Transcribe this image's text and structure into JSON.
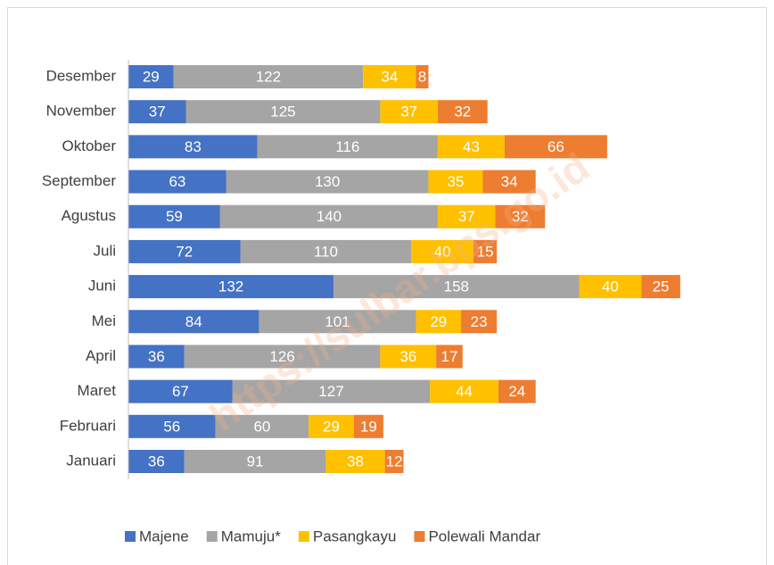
{
  "chart_data": {
    "type": "stacked-barh",
    "categories": [
      "Januari",
      "Februari",
      "Maret",
      "April",
      "Mei",
      "Juni",
      "Juli",
      "Agustus",
      "September",
      "Oktober",
      "November",
      "Desember"
    ],
    "series": [
      {
        "name": "Majene",
        "color": "#4472c4",
        "values": [
          36,
          56,
          67,
          36,
          84,
          132,
          72,
          59,
          63,
          83,
          37,
          29
        ]
      },
      {
        "name": "Mamuju*",
        "color": "#a5a5a5",
        "values": [
          91,
          60,
          127,
          126,
          101,
          158,
          110,
          140,
          130,
          116,
          125,
          122
        ]
      },
      {
        "name": "Pasangkayu",
        "color": "#ffc000",
        "values": [
          38,
          29,
          44,
          36,
          29,
          40,
          40,
          37,
          35,
          43,
          37,
          34
        ]
      },
      {
        "name": "Polewali Mandar",
        "color": "#ed7d31",
        "values": [
          12,
          19,
          24,
          17,
          23,
          25,
          15,
          32,
          34,
          66,
          32,
          8
        ]
      }
    ],
    "xlim": [
      0,
      370
    ],
    "legend": "bottom",
    "watermark": "https://sulbar.bps.go.id"
  }
}
